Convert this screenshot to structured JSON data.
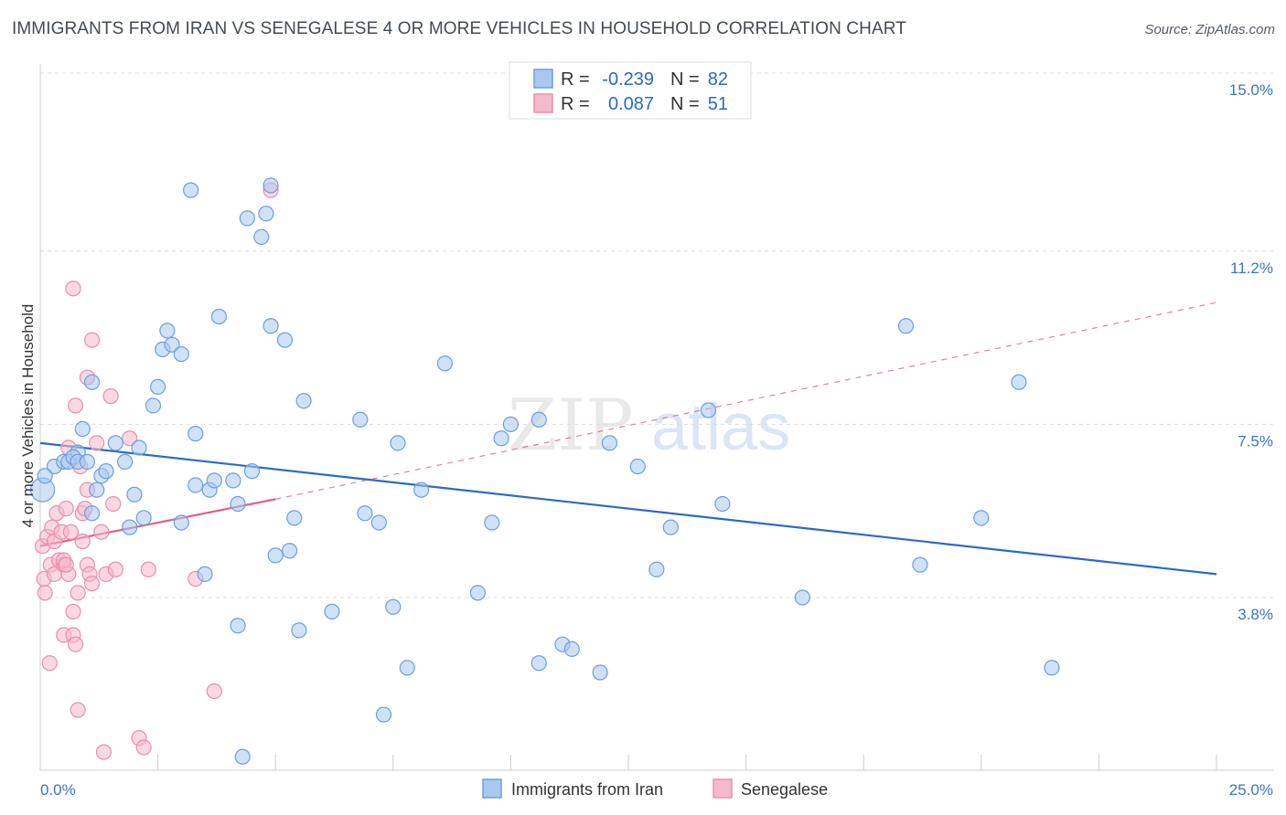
{
  "title": "IMMIGRANTS FROM IRAN VS SENEGALESE 4 OR MORE VEHICLES IN HOUSEHOLD CORRELATION CHART",
  "source": "Source: ZipAtlas.com",
  "watermark": {
    "zip": "ZIP",
    "atlas": "atlas"
  },
  "colors": {
    "blue_fill": "#a9c8ef",
    "blue_stroke": "#6d9fdf",
    "blue_line": "#2a6acb",
    "pink_fill": "#f6b8cb",
    "pink_stroke": "#ea8fad",
    "pink_line": "#e0608b",
    "axis_label": "#3b74c9",
    "grid": "#dddddd"
  },
  "legend": {
    "rows": [
      {
        "r_label": "R =",
        "r_value": "-0.239",
        "n_label": "N =",
        "n_value": "82",
        "series": "blue"
      },
      {
        "r_label": "R =",
        "r_value": "0.087",
        "n_label": "N =",
        "n_value": "51",
        "series": "pink"
      }
    ]
  },
  "chart_data": {
    "type": "scatter",
    "title": "IMMIGRANTS FROM IRAN VS SENEGALESE 4 OR MORE VEHICLES IN HOUSEHOLD CORRELATION CHART",
    "xlabel": "",
    "ylabel": "4 or more Vehicles in Household",
    "xlim": [
      0,
      25
    ],
    "ylim": [
      0,
      15.5
    ],
    "x_tick_labels": {
      "min": "0.0%",
      "max": "25.0%"
    },
    "x_minor_ticks": [
      2.5,
      5.0,
      7.5,
      10.0,
      12.5,
      15.0,
      17.5,
      20.0,
      22.5,
      25.0
    ],
    "y_ticks": [
      {
        "value": 3.8,
        "label": "3.8%"
      },
      {
        "value": 7.5,
        "label": "7.5%"
      },
      {
        "value": 11.2,
        "label": "11.2%"
      },
      {
        "value": 15.0,
        "label": "15.0%"
      }
    ],
    "series": [
      {
        "name": "Immigrants from Iran",
        "color": "blue",
        "trend": {
          "x0": 0,
          "y0": 7.1,
          "x1": 25,
          "y1": 4.3,
          "dashed_from": null
        },
        "points": [
          [
            0.05,
            6.1
          ],
          [
            0.3,
            6.6
          ],
          [
            0.5,
            6.7
          ],
          [
            0.6,
            6.7
          ],
          [
            0.8,
            6.9
          ],
          [
            0.7,
            6.8
          ],
          [
            0.8,
            6.7
          ],
          [
            1.0,
            6.7
          ],
          [
            1.1,
            8.4
          ],
          [
            0.9,
            7.4
          ],
          [
            1.6,
            7.1
          ],
          [
            1.3,
            6.4
          ],
          [
            1.4,
            6.5
          ],
          [
            1.2,
            6.1
          ],
          [
            1.8,
            6.7
          ],
          [
            2.1,
            7.0
          ],
          [
            2.0,
            6.0
          ],
          [
            1.1,
            5.6
          ],
          [
            1.9,
            5.3
          ],
          [
            2.2,
            5.5
          ],
          [
            2.4,
            7.9
          ],
          [
            2.5,
            8.3
          ],
          [
            2.6,
            9.1
          ],
          [
            2.7,
            9.5
          ],
          [
            2.8,
            9.2
          ],
          [
            3.0,
            9.0
          ],
          [
            3.2,
            12.5
          ],
          [
            3.3,
            6.2
          ],
          [
            3.3,
            7.3
          ],
          [
            3.0,
            5.4
          ],
          [
            3.5,
            4.3
          ],
          [
            3.6,
            6.1
          ],
          [
            3.7,
            6.3
          ],
          [
            3.8,
            9.8
          ],
          [
            4.1,
            6.3
          ],
          [
            4.2,
            5.8
          ],
          [
            4.2,
            3.2
          ],
          [
            4.3,
            0.4
          ],
          [
            4.4,
            11.9
          ],
          [
            4.5,
            6.5
          ],
          [
            4.7,
            11.5
          ],
          [
            4.8,
            12.0
          ],
          [
            4.9,
            9.6
          ],
          [
            4.9,
            12.6
          ],
          [
            5.0,
            4.7
          ],
          [
            5.2,
            9.3
          ],
          [
            5.3,
            4.8
          ],
          [
            5.4,
            5.5
          ],
          [
            5.5,
            3.1
          ],
          [
            5.6,
            8.0
          ],
          [
            6.2,
            3.5
          ],
          [
            6.8,
            7.6
          ],
          [
            6.9,
            5.6
          ],
          [
            7.2,
            5.4
          ],
          [
            7.3,
            1.3
          ],
          [
            7.5,
            3.6
          ],
          [
            7.6,
            7.1
          ],
          [
            7.8,
            2.3
          ],
          [
            8.1,
            6.1
          ],
          [
            8.6,
            8.8
          ],
          [
            9.3,
            3.9
          ],
          [
            9.6,
            5.4
          ],
          [
            9.8,
            7.2
          ],
          [
            10.0,
            7.5
          ],
          [
            10.6,
            7.6
          ],
          [
            10.6,
            2.4
          ],
          [
            11.1,
            2.8
          ],
          [
            11.3,
            2.7
          ],
          [
            11.9,
            2.2
          ],
          [
            12.1,
            7.1
          ],
          [
            12.7,
            6.6
          ],
          [
            13.1,
            4.4
          ],
          [
            13.4,
            5.3
          ],
          [
            14.2,
            7.8
          ],
          [
            14.5,
            5.8
          ],
          [
            16.2,
            3.8
          ],
          [
            18.4,
            9.6
          ],
          [
            18.7,
            4.5
          ],
          [
            20.0,
            5.5
          ],
          [
            20.8,
            8.4
          ],
          [
            21.5,
            2.3
          ],
          [
            0.1,
            6.4
          ]
        ]
      },
      {
        "name": "Senegalese",
        "color": "pink",
        "trend": {
          "x0": 0,
          "y0": 4.9,
          "x1": 5.0,
          "y1": 5.9,
          "dashed_x1": 25,
          "dashed_y1": 10.1
        },
        "points": [
          [
            0.05,
            4.9
          ],
          [
            0.08,
            4.2
          ],
          [
            0.1,
            3.9
          ],
          [
            0.15,
            5.1
          ],
          [
            0.2,
            2.4
          ],
          [
            0.22,
            4.5
          ],
          [
            0.25,
            5.3
          ],
          [
            0.3,
            4.3
          ],
          [
            0.3,
            5.0
          ],
          [
            0.35,
            5.6
          ],
          [
            0.4,
            4.6
          ],
          [
            0.45,
            5.2
          ],
          [
            0.5,
            4.5
          ],
          [
            0.5,
            3.0
          ],
          [
            0.55,
            5.7
          ],
          [
            0.6,
            7.0
          ],
          [
            0.6,
            4.3
          ],
          [
            0.65,
            5.2
          ],
          [
            0.5,
            4.6
          ],
          [
            0.55,
            4.5
          ],
          [
            0.7,
            3.5
          ],
          [
            0.7,
            3.0
          ],
          [
            0.75,
            2.8
          ],
          [
            0.8,
            3.9
          ],
          [
            0.85,
            6.6
          ],
          [
            0.9,
            5.0
          ],
          [
            0.7,
            10.4
          ],
          [
            0.75,
            7.9
          ],
          [
            0.8,
            1.4
          ],
          [
            0.9,
            5.6
          ],
          [
            0.95,
            5.7
          ],
          [
            1.0,
            6.1
          ],
          [
            1.0,
            4.5
          ],
          [
            1.0,
            8.5
          ],
          [
            1.05,
            4.3
          ],
          [
            1.1,
            4.1
          ],
          [
            1.1,
            9.3
          ],
          [
            1.2,
            7.1
          ],
          [
            1.3,
            5.2
          ],
          [
            1.35,
            0.5
          ],
          [
            1.4,
            4.3
          ],
          [
            1.5,
            8.1
          ],
          [
            1.55,
            5.8
          ],
          [
            1.6,
            4.4
          ],
          [
            1.9,
            7.2
          ],
          [
            2.1,
            0.8
          ],
          [
            2.2,
            0.6
          ],
          [
            2.3,
            4.4
          ],
          [
            3.3,
            4.2
          ],
          [
            3.7,
            1.8
          ],
          [
            4.9,
            12.5
          ]
        ]
      }
    ]
  },
  "bottom_legend": {
    "items": [
      "Immigrants from Iran",
      "Senegalese"
    ]
  }
}
